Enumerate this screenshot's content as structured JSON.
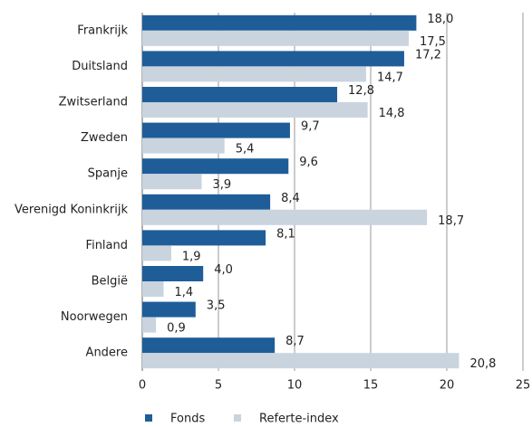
{
  "chart_data": {
    "type": "hbar",
    "categories": [
      "Frankrijk",
      "Duitsland",
      "Zwitserland",
      "Zweden",
      "Spanje",
      "Verenigd Koninkrijk",
      "Finland",
      "België",
      "Noorwegen",
      "Andere"
    ],
    "series": [
      {
        "name": "Fonds",
        "color": "#1f5d99",
        "values": [
          18.0,
          17.2,
          12.8,
          9.7,
          9.6,
          8.4,
          8.1,
          4.0,
          3.5,
          8.7
        ],
        "value_labels": [
          "18,0",
          "17,2",
          "12,8",
          "9,7",
          "9,6",
          "8,4",
          "8,1",
          "4,0",
          "3,5",
          "8,7"
        ]
      },
      {
        "name": "Referte-index",
        "color": "#c9d4df",
        "values": [
          17.5,
          14.7,
          14.8,
          5.4,
          3.9,
          18.7,
          1.9,
          1.4,
          0.9,
          20.8
        ],
        "value_labels": [
          "17,5",
          "14,7",
          "14,8",
          "5,4",
          "3,9",
          "18,7",
          "1,9",
          "1,4",
          "0,9",
          "20,8"
        ]
      }
    ],
    "xlim": [
      0,
      25
    ],
    "xticks": [
      0,
      5,
      10,
      15,
      20,
      25
    ],
    "grid": true,
    "legend": "bottom"
  }
}
